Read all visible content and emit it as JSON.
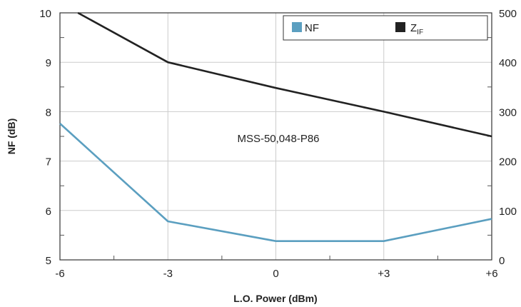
{
  "chart_data": {
    "type": "line",
    "xlabel": "L.O. Power (dBm)",
    "x": [
      -6,
      -3,
      0,
      3,
      6
    ],
    "x_tick_labels": [
      "-6",
      "-3",
      "0",
      "+3",
      "+6"
    ],
    "left_axis": {
      "label": "NF (dB)",
      "range": [
        5,
        10
      ],
      "ticks": [
        5,
        6,
        7,
        8,
        9,
        10
      ]
    },
    "right_axis": {
      "range": [
        0,
        500
      ],
      "ticks": [
        "0",
        "100",
        "200",
        "300",
        "400",
        "500"
      ]
    },
    "series": [
      {
        "name": "NF",
        "axis": "left",
        "color": "#5b9fc0",
        "x": [
          -6,
          -3,
          0,
          3,
          6
        ],
        "y": [
          7.76,
          5.78,
          5.38,
          5.38,
          5.83
        ]
      },
      {
        "name": "Z",
        "name_subscript": "IF",
        "axis": "right",
        "color": "#222222",
        "x": [
          -5.5,
          -3,
          0,
          3,
          6
        ],
        "y": [
          500,
          400,
          348,
          300,
          250
        ]
      }
    ],
    "annotation": "MSS-50,048-P86",
    "grid": true,
    "legend_position": "top-right"
  }
}
